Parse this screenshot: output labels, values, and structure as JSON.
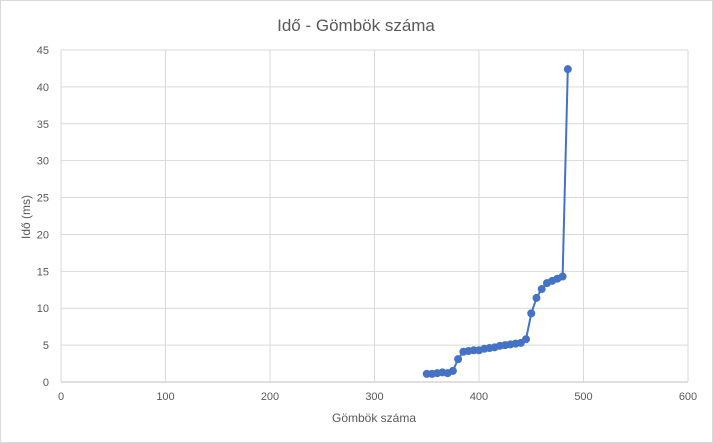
{
  "chart_data": {
    "type": "scatter",
    "title": "Idő - Gömbök száma",
    "xlabel": "Gömbök száma",
    "ylabel": "Idő (ms)",
    "xlim": [
      0,
      600
    ],
    "ylim": [
      0,
      45
    ],
    "xticks": [
      "0",
      "100",
      "200",
      "300",
      "400",
      "500",
      "600"
    ],
    "yticks": [
      "0",
      "5",
      "10",
      "15",
      "20",
      "25",
      "30",
      "35",
      "40",
      "45"
    ],
    "grid": true,
    "legend": "none",
    "connected": true,
    "color": "#4472C4",
    "series": [
      {
        "x": [
          350,
          355,
          360,
          365,
          370,
          375,
          380,
          385,
          390,
          395,
          400,
          405,
          410,
          415,
          420,
          425,
          430,
          435,
          440,
          445,
          450,
          455,
          460,
          465,
          470,
          475,
          480,
          485
        ],
        "y": [
          1.1,
          1.1,
          1.2,
          1.3,
          1.2,
          1.5,
          3.1,
          4.1,
          4.2,
          4.3,
          4.3,
          4.5,
          4.6,
          4.7,
          4.9,
          5.0,
          5.1,
          5.2,
          5.3,
          5.8,
          9.3,
          11.4,
          12.6,
          13.4,
          13.7,
          14.0,
          14.3,
          42.4
        ]
      }
    ]
  }
}
